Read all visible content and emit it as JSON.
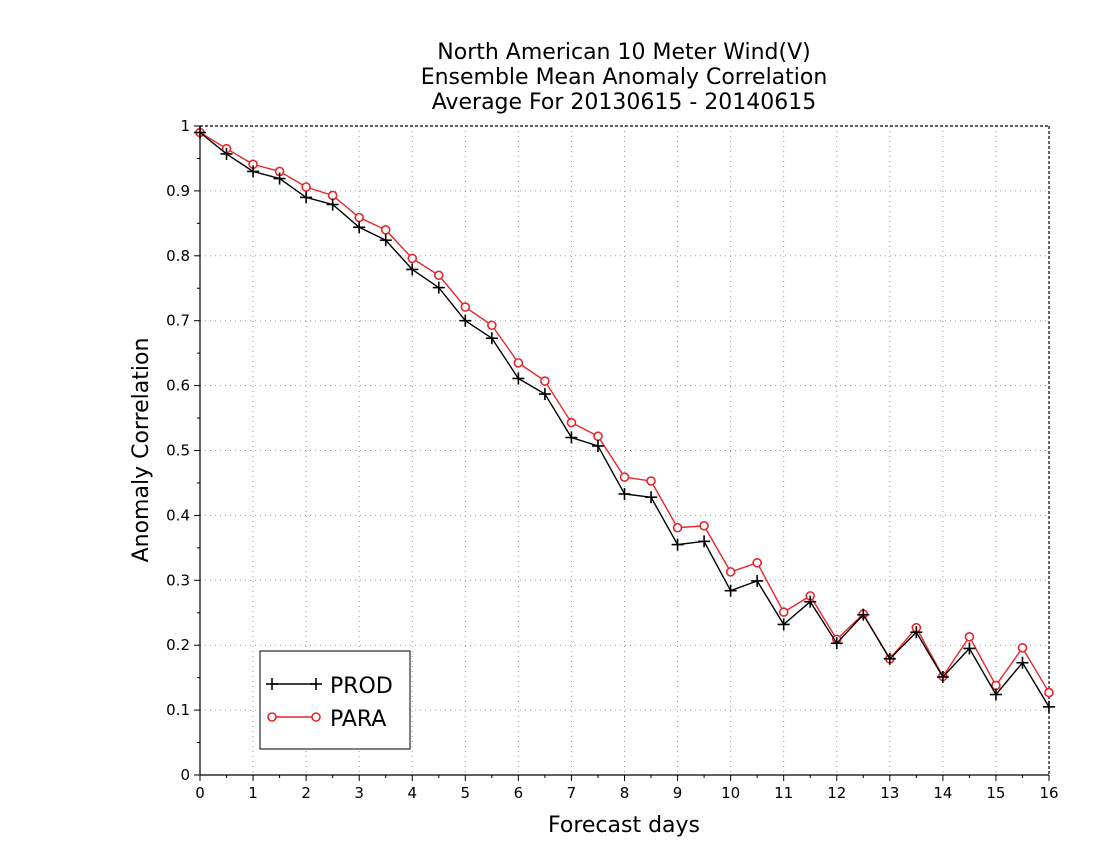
{
  "chart_data": {
    "type": "line",
    "title": [
      "North American 10 Meter Wind(V)",
      "Ensemble Mean Anomaly Correlation",
      "Average For 20130615 - 20140615"
    ],
    "xlabel": "Forecast days",
    "ylabel": "Anomaly Correlation",
    "xlim": [
      0,
      16
    ],
    "ylim": [
      0,
      1
    ],
    "x_ticks": [
      "0",
      "1",
      "2",
      "3",
      "4",
      "5",
      "6",
      "7",
      "8",
      "9",
      "10",
      "11",
      "12",
      "13",
      "14",
      "15",
      "16"
    ],
    "y_ticks": [
      "0",
      "0.1",
      "0.2",
      "0.3",
      "0.4",
      "0.5",
      "0.6",
      "0.7",
      "0.8",
      "0.9",
      "1"
    ],
    "grid": true,
    "legend_position": "bottom-left",
    "x": [
      0,
      0.5,
      1,
      1.5,
      2,
      2.5,
      3,
      3.5,
      4,
      4.5,
      5,
      5.5,
      6,
      6.5,
      7,
      7.5,
      8,
      8.5,
      9,
      9.5,
      10,
      10.5,
      11,
      11.5,
      12,
      12.5,
      13,
      13.5,
      14,
      14.5,
      15,
      15.5,
      16
    ],
    "series": [
      {
        "name": "PROD",
        "color": "#000000",
        "marker": "plus",
        "values": [
          0.99,
          0.957,
          0.93,
          0.919,
          0.89,
          0.879,
          0.844,
          0.824,
          0.779,
          0.751,
          0.7,
          0.673,
          0.611,
          0.587,
          0.52,
          0.507,
          0.433,
          0.428,
          0.355,
          0.36,
          0.284,
          0.299,
          0.232,
          0.267,
          0.203,
          0.247,
          0.179,
          0.22,
          0.151,
          0.195,
          0.124,
          0.173,
          0.105
        ]
      },
      {
        "name": "PARA",
        "color": "#e8262b",
        "marker": "circle",
        "values": [
          0.99,
          0.965,
          0.941,
          0.93,
          0.906,
          0.893,
          0.859,
          0.84,
          0.796,
          0.77,
          0.721,
          0.693,
          0.635,
          0.607,
          0.543,
          0.522,
          0.459,
          0.453,
          0.381,
          0.384,
          0.313,
          0.327,
          0.251,
          0.276,
          0.209,
          0.248,
          0.179,
          0.227,
          0.152,
          0.213,
          0.138,
          0.196,
          0.127
        ]
      }
    ]
  }
}
